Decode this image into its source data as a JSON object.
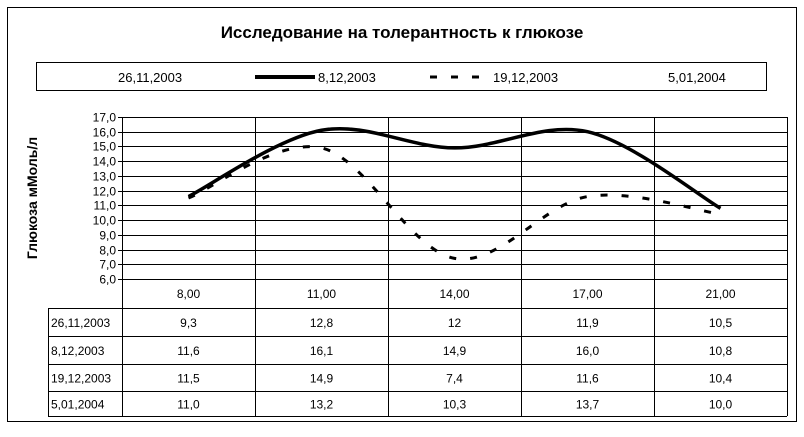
{
  "chart_data": {
    "type": "line",
    "title": "Исследование на толерантность к глюкозе",
    "ylabel": "Глюкоза мМоль/л",
    "xlabel": "",
    "ylim": [
      6.0,
      17.0
    ],
    "ystep": 1.0,
    "y_tick_labels": [
      "6,0",
      "7,0",
      "8,0",
      "9,0",
      "10,0",
      "11,0",
      "12,0",
      "13,0",
      "14,0",
      "15,0",
      "16,0",
      "17,0"
    ],
    "grid": true,
    "legend_position": "top",
    "categories": [
      "8,00",
      "11,00",
      "14,00",
      "17,00",
      "21,00"
    ],
    "series": [
      {
        "name": "26,11,2003",
        "values": [
          9.3,
          12.8,
          12,
          11.9,
          10.5
        ],
        "labels": [
          "9,3",
          "12,8",
          "12",
          "11,9",
          "10,5"
        ],
        "line": "none",
        "color": "#000000"
      },
      {
        "name": "8,12,2003",
        "values": [
          11.6,
          16.1,
          14.9,
          16.0,
          10.8
        ],
        "labels": [
          "11,6",
          "16,1",
          "14,9",
          "16,0",
          "10,8"
        ],
        "line": "solid",
        "color": "#000000"
      },
      {
        "name": "19,12,2003",
        "values": [
          11.5,
          14.9,
          7.4,
          11.6,
          10.4
        ],
        "labels": [
          "11,5",
          "14,9",
          "7,4",
          "11,6",
          "10,4"
        ],
        "line": "dashed",
        "color": "#000000"
      },
      {
        "name": "5,01,2004",
        "values": [
          11.0,
          13.2,
          10.3,
          13.7,
          10.0
        ],
        "labels": [
          "11,0",
          "13,2",
          "10,3",
          "13,7",
          "10,0"
        ],
        "line": "none",
        "color": "#000000"
      }
    ]
  }
}
